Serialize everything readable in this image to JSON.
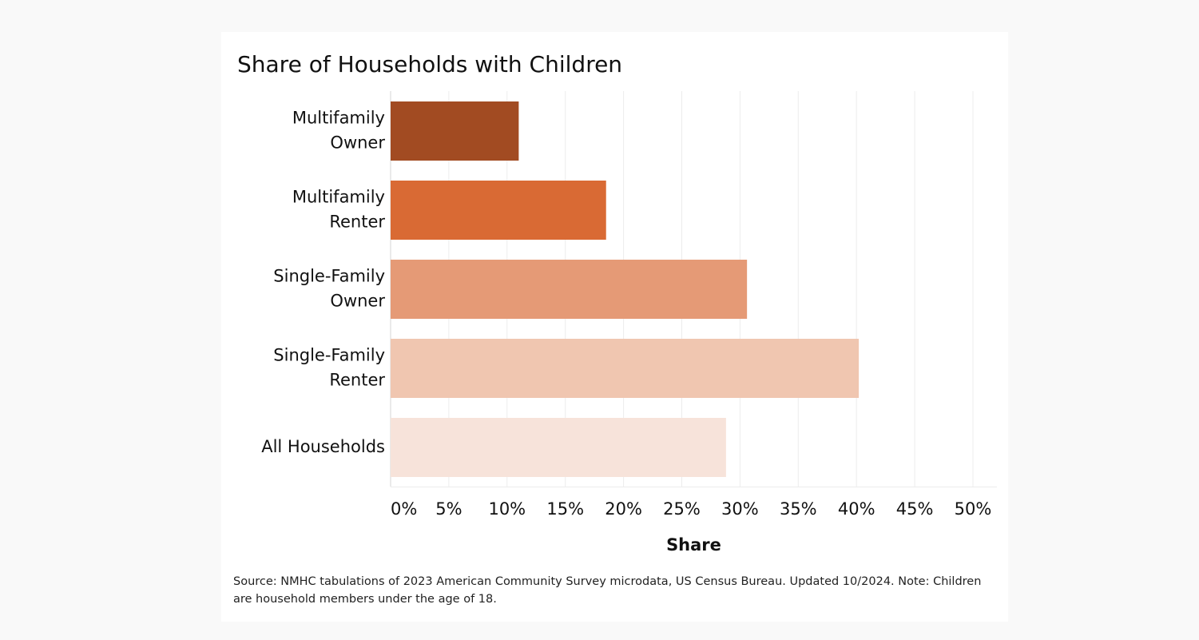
{
  "chart_data": {
    "type": "bar",
    "orientation": "horizontal",
    "title": "Share of Households with Children",
    "xlabel": "Share",
    "ylabel": "",
    "categories": [
      [
        "Multifamily",
        "Owner"
      ],
      [
        "Multifamily",
        "Renter"
      ],
      [
        "Single-Family",
        "Owner"
      ],
      [
        "Single-Family",
        "Renter"
      ],
      [
        "All Households"
      ]
    ],
    "values": [
      11.0,
      18.5,
      30.6,
      40.2,
      28.8
    ],
    "colors": [
      "#a24b22",
      "#d96a34",
      "#e59a76",
      "#f0c6b0",
      "#f7e3da"
    ],
    "xlim": [
      0,
      50
    ],
    "xticks": [
      0,
      5,
      10,
      15,
      20,
      25,
      30,
      35,
      40,
      45,
      50
    ],
    "xtick_labels": [
      "0%",
      "5%",
      "10%",
      "15%",
      "20%",
      "25%",
      "30%",
      "35%",
      "40%",
      "45%",
      "50%"
    ],
    "grid": true,
    "legend": "none"
  },
  "footer": {
    "source": "Source: NMHC tabulations of 2023 American Community Survey microdata, US Census Bureau. Updated 10/2024. Note: Children are household members under the age of 18."
  }
}
